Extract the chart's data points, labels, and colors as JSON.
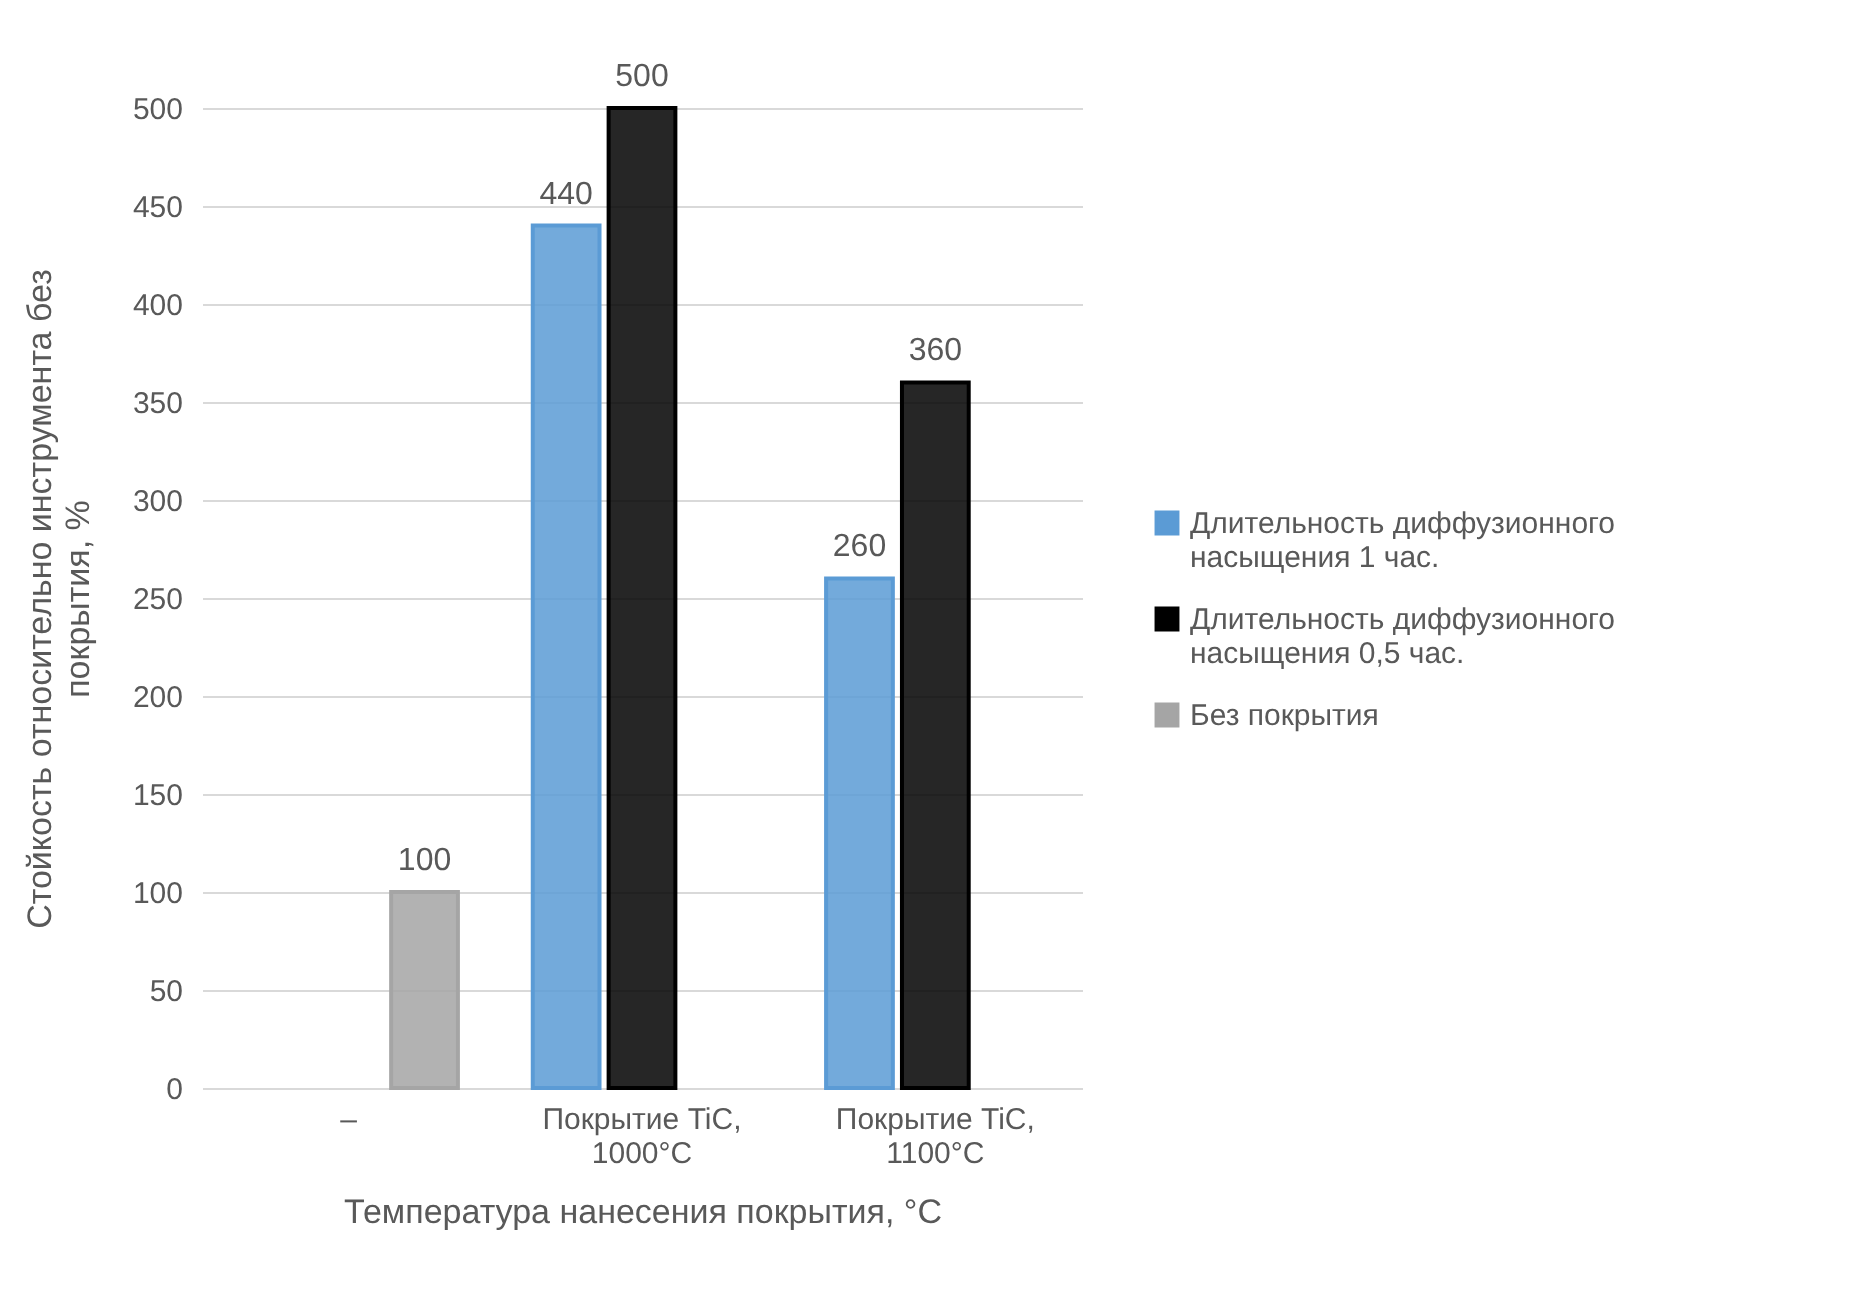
{
  "chart_data": {
    "type": "bar",
    "xlabel": "Температура нанесения покрытия, °C",
    "ylabel": "Стойкость относительно инструмента без покрытия, %",
    "categories": [
      "–",
      "Покрытие TiC, 1000°C",
      "Покрытие TiC, 1100°C"
    ],
    "series": [
      {
        "name": "Длительность диффузионного насыщения 1 час.",
        "color": "#5b9bd5",
        "values": [
          null,
          440,
          260
        ]
      },
      {
        "name": "Длительность диффузионного насыщения 0,5 час.",
        "color": "#000000",
        "values": [
          null,
          500,
          360
        ]
      },
      {
        "name": "Без покрытия",
        "color": "#a5a5a5",
        "values": [
          100,
          null,
          null
        ]
      }
    ],
    "data_labels": true,
    "ylim": [
      0,
      500
    ],
    "yticks": [
      0,
      50,
      100,
      150,
      200,
      250,
      300,
      350,
      400,
      450,
      500
    ],
    "grid": "y",
    "legend": "right"
  }
}
